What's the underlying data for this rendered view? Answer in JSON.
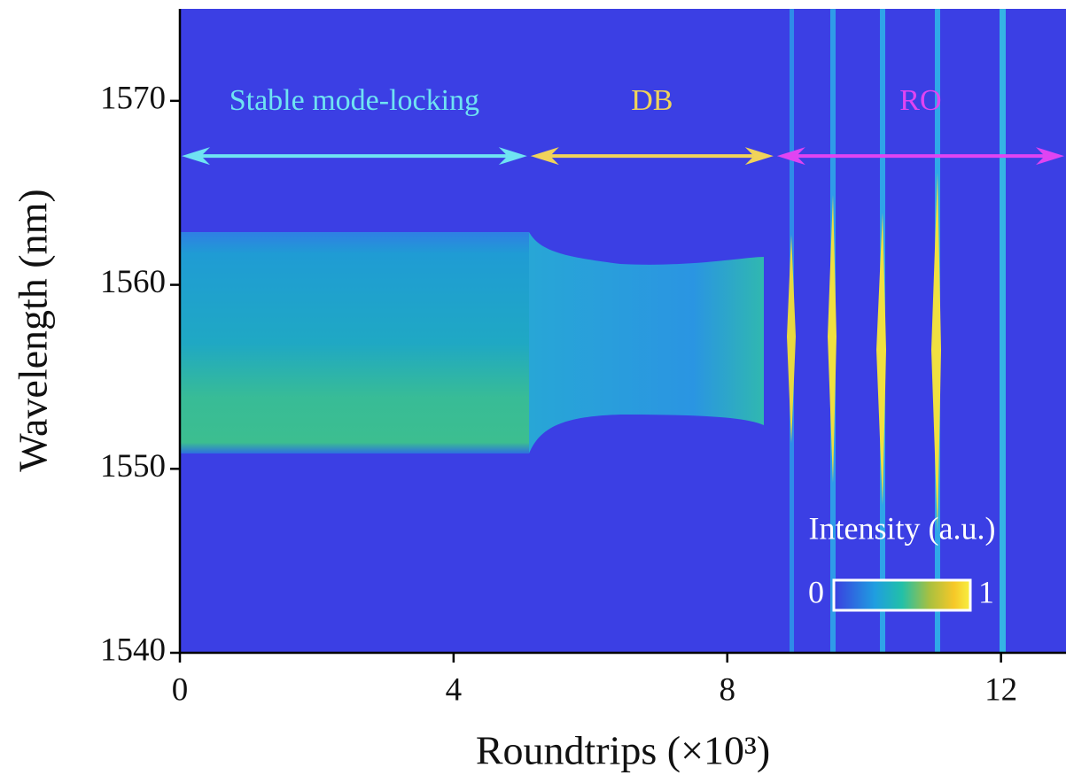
{
  "chart_data": {
    "type": "heatmap",
    "x_label": "Roundtrips (×10³)",
    "y_label": "Wavelength (nm)",
    "xlim": [
      0,
      12.95
    ],
    "xticks": [
      0,
      4,
      8,
      12
    ],
    "ylim": [
      1540,
      1575
    ],
    "yticks": [
      1540,
      1550,
      1560,
      1570
    ],
    "annotations": [
      {
        "text": "Stable mode-locking",
        "color": "#6fe3f2",
        "x": [
          0,
          5.1
        ]
      },
      {
        "text": "DB",
        "color": "#f0d35a",
        "x": [
          5.1,
          8.7
        ]
      },
      {
        "text": "RO",
        "color": "#e044f2",
        "x": [
          8.7,
          12.95
        ]
      }
    ],
    "annotation_y": 1567,
    "colorbar": {
      "label": "Intensity (a.u.)",
      "ticks": [
        0,
        1
      ]
    }
  }
}
